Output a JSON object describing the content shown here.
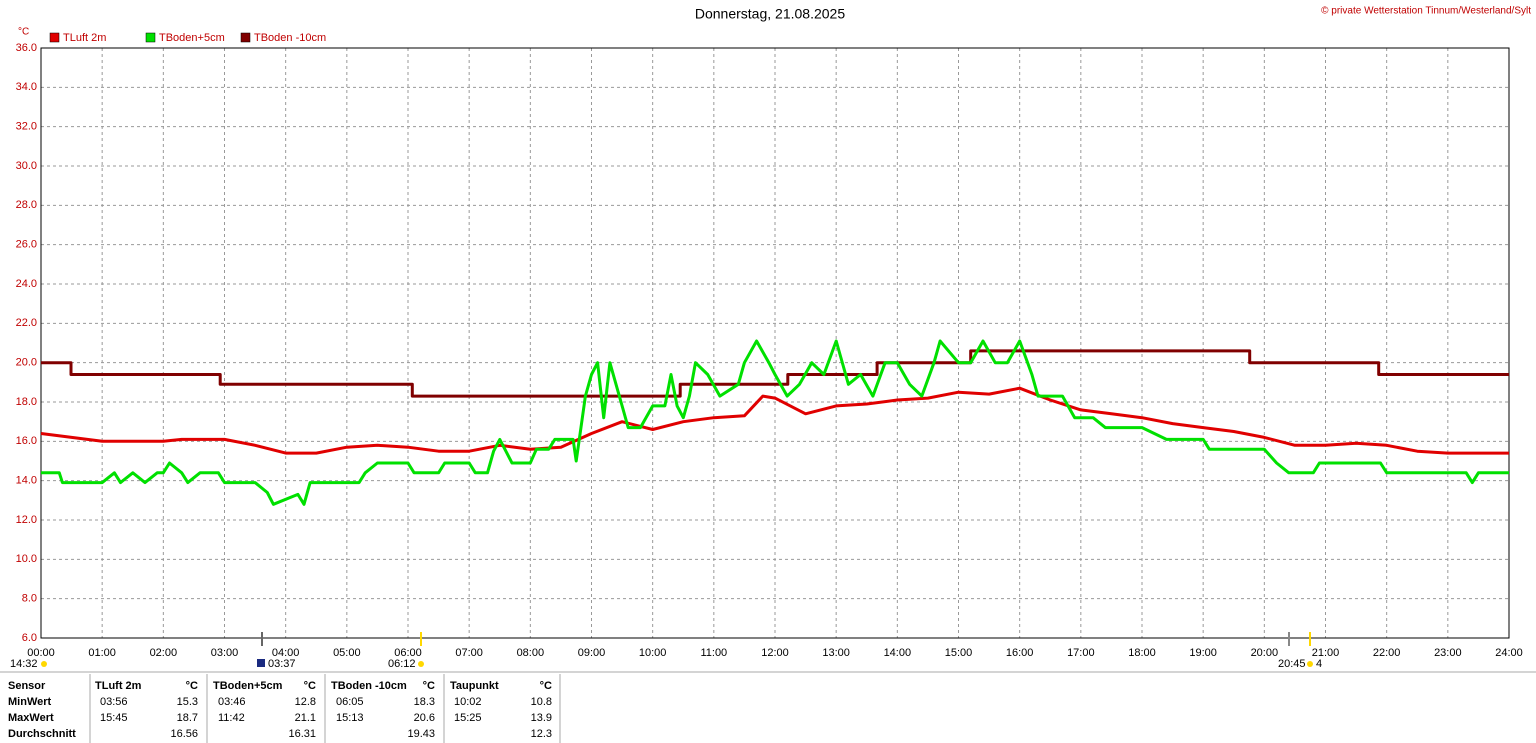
{
  "chart_data": {
    "type": "line",
    "title": "Donnerstag, 21.08.2025",
    "copyright": "© private Wetterstation Tinnum/Westerland/Sylt",
    "unit": "°C",
    "sun_moon_labels": [
      "14:32",
      "03:37",
      "06:12",
      "20:45",
      "4"
    ],
    "xlim": [
      0,
      24
    ],
    "xticks": [
      {
        "value": 0,
        "label": "00:00"
      },
      {
        "value": 1,
        "label": "01:00"
      },
      {
        "value": 2,
        "label": "02:00"
      },
      {
        "value": 3,
        "label": "03:00"
      },
      {
        "value": 4,
        "label": "04:00"
      },
      {
        "value": 5,
        "label": "05:00"
      },
      {
        "value": 6,
        "label": "06:00"
      },
      {
        "value": 7,
        "label": "07:00"
      },
      {
        "value": 8,
        "label": "08:00"
      },
      {
        "value": 9,
        "label": "09:00"
      },
      {
        "value": 10,
        "label": "10:00"
      },
      {
        "value": 11,
        "label": "11:00"
      },
      {
        "value": 12,
        "label": "12:00"
      },
      {
        "value": 13,
        "label": "13:00"
      },
      {
        "value": 14,
        "label": "14:00"
      },
      {
        "value": 15,
        "label": "15:00"
      },
      {
        "value": 16,
        "label": "16:00"
      },
      {
        "value": 17,
        "label": "17:00"
      },
      {
        "value": 18,
        "label": "18:00"
      },
      {
        "value": 19,
        "label": "19:00"
      },
      {
        "value": 20,
        "label": "20:00"
      },
      {
        "value": 21,
        "label": "21:00"
      },
      {
        "value": 22,
        "label": "22:00"
      },
      {
        "value": 23,
        "label": "23:00"
      },
      {
        "value": 24,
        "label": "24:00"
      }
    ],
    "ylim": [
      6,
      36
    ],
    "yticks": [
      {
        "value": 6,
        "label": "6.0"
      },
      {
        "value": 8,
        "label": "8.0"
      },
      {
        "value": 10,
        "label": "10.0"
      },
      {
        "value": 12,
        "label": "12.0"
      },
      {
        "value": 14,
        "label": "14.0"
      },
      {
        "value": 16,
        "label": "16.0"
      },
      {
        "value": 18,
        "label": "18.0"
      },
      {
        "value": 20,
        "label": "20.0"
      },
      {
        "value": 22,
        "label": "22.0"
      },
      {
        "value": 24,
        "label": "24.0"
      },
      {
        "value": 26,
        "label": "26.0"
      },
      {
        "value": 28,
        "label": "28.0"
      },
      {
        "value": 30,
        "label": "30.0"
      },
      {
        "value": 32,
        "label": "32.0"
      },
      {
        "value": 34,
        "label": "34.0"
      },
      {
        "value": 36,
        "label": "36.0"
      }
    ],
    "grid": true,
    "series": [
      {
        "name": "TLuft 2m",
        "color": "#e00000",
        "x": [
          0,
          0.5,
          1,
          2,
          2.3,
          3,
          3.5,
          4,
          4.5,
          5,
          5.5,
          6,
          6.5,
          7,
          7.5,
          8,
          8.5,
          9,
          9.5,
          10,
          10.5,
          11,
          11.5,
          11.8,
          12,
          12.5,
          13,
          13.5,
          14,
          14.5,
          15,
          15.5,
          16,
          16.5,
          17,
          17.5,
          18,
          18.5,
          19,
          19.5,
          20,
          20.5,
          21,
          21.5,
          22,
          22.5,
          23,
          24
        ],
        "values": [
          16.4,
          16.2,
          16.0,
          16.0,
          16.1,
          16.1,
          15.8,
          15.4,
          15.4,
          15.7,
          15.8,
          15.7,
          15.5,
          15.5,
          15.8,
          15.6,
          15.7,
          16.4,
          17.0,
          16.6,
          17.0,
          17.2,
          17.3,
          18.3,
          18.2,
          17.4,
          17.8,
          17.9,
          18.1,
          18.2,
          18.5,
          18.4,
          18.7,
          18.1,
          17.6,
          17.4,
          17.2,
          16.9,
          16.7,
          16.5,
          16.2,
          15.8,
          15.8,
          15.9,
          15.8,
          15.5,
          15.4,
          15.4
        ]
      },
      {
        "name": "TBoden+5cm",
        "color": "#00e000",
        "x": [
          0,
          0.3,
          0.35,
          1,
          1.2,
          1.3,
          1.5,
          1.7,
          1.9,
          2,
          2.1,
          2.3,
          2.4,
          2.6,
          2.9,
          3,
          3.5,
          3.7,
          3.8,
          4.2,
          4.3,
          4.4,
          5,
          5.2,
          5.3,
          5.5,
          6,
          6.1,
          6.5,
          6.6,
          7,
          7.1,
          7.3,
          7.4,
          7.5,
          7.6,
          7.7,
          8,
          8.1,
          8.3,
          8.4,
          8.7,
          8.75,
          8.8,
          8.9,
          9,
          9.1,
          9.2,
          9.3,
          9.5,
          9.6,
          9.8,
          10,
          10.2,
          10.3,
          10.4,
          10.5,
          10.6,
          10.7,
          10.9,
          11.1,
          11.4,
          11.5,
          11.7,
          11.9,
          12,
          12.2,
          12.4,
          12.6,
          12.8,
          13,
          13.2,
          13.4,
          13.6,
          13.8,
          14,
          14.2,
          14.4,
          14.6,
          14.7,
          15,
          15.2,
          15.4,
          15.6,
          15.8,
          16,
          16.2,
          16.3,
          16.7,
          16.9,
          17.2,
          17.4,
          18,
          18.4,
          19,
          19.1,
          20,
          20.2,
          20.4,
          20.8,
          20.9,
          21.9,
          22,
          23.3,
          23.4,
          23.5,
          24
        ],
        "values": [
          14.4,
          14.4,
          13.9,
          13.9,
          14.4,
          13.9,
          14.4,
          13.9,
          14.4,
          14.4,
          14.9,
          14.4,
          13.9,
          14.4,
          14.4,
          13.9,
          13.9,
          13.4,
          12.8,
          13.3,
          12.8,
          13.9,
          13.9,
          13.9,
          14.4,
          14.9,
          14.9,
          14.4,
          14.4,
          14.9,
          14.9,
          14.4,
          14.4,
          15.5,
          16.1,
          15.5,
          14.9,
          14.9,
          15.6,
          15.6,
          16.1,
          16.1,
          15.0,
          16.1,
          18.3,
          19.4,
          20.0,
          17.2,
          20.0,
          17.8,
          16.7,
          16.7,
          17.8,
          17.8,
          19.4,
          17.8,
          17.2,
          18.3,
          20.0,
          19.4,
          18.3,
          18.9,
          20.0,
          21.1,
          20.0,
          19.4,
          18.3,
          18.9,
          20.0,
          19.4,
          21.1,
          18.9,
          19.4,
          18.3,
          20.0,
          20.0,
          18.9,
          18.3,
          20.0,
          21.1,
          20.0,
          20.0,
          21.1,
          20.0,
          20.0,
          21.1,
          19.4,
          18.3,
          18.3,
          17.2,
          17.2,
          16.7,
          16.7,
          16.1,
          16.1,
          15.6,
          15.6,
          14.9,
          14.4,
          14.4,
          14.9,
          14.9,
          14.4,
          14.4,
          13.9,
          14.4,
          14.4
        ]
      },
      {
        "name": "TBoden -10cm",
        "color": "#800000",
        "x": [
          0,
          0.49,
          0.49,
          2.93,
          2.93,
          6.07,
          6.07,
          10.45,
          10.45,
          12.21,
          12.21,
          13.67,
          13.67,
          15.2,
          15.2,
          19.76,
          19.76,
          21.87,
          21.87,
          24
        ],
        "values": [
          20.0,
          20.0,
          19.4,
          19.4,
          18.9,
          18.9,
          18.3,
          18.3,
          18.9,
          18.9,
          19.4,
          19.4,
          20.0,
          20.0,
          20.6,
          20.6,
          20.0,
          20.0,
          19.4,
          19.4
        ]
      }
    ]
  },
  "table": {
    "header": [
      "Sensor",
      "TLuft 2m",
      "°C",
      "TBoden+5cm",
      "°C",
      "TBoden -10cm",
      "°C",
      "Taupunkt",
      "°C"
    ],
    "rows": [
      [
        "MinWert",
        "03:56",
        15.3,
        "03:46",
        12.8,
        "06:05",
        18.3,
        "10:02",
        10.8
      ],
      [
        "MaxWert",
        "15:45",
        18.7,
        "11:42",
        21.1,
        "15:13",
        20.6,
        "15:25",
        13.9
      ],
      [
        "Durchschnitt",
        null,
        16.56,
        null,
        16.31,
        null,
        19.43,
        null,
        12.3
      ]
    ]
  }
}
